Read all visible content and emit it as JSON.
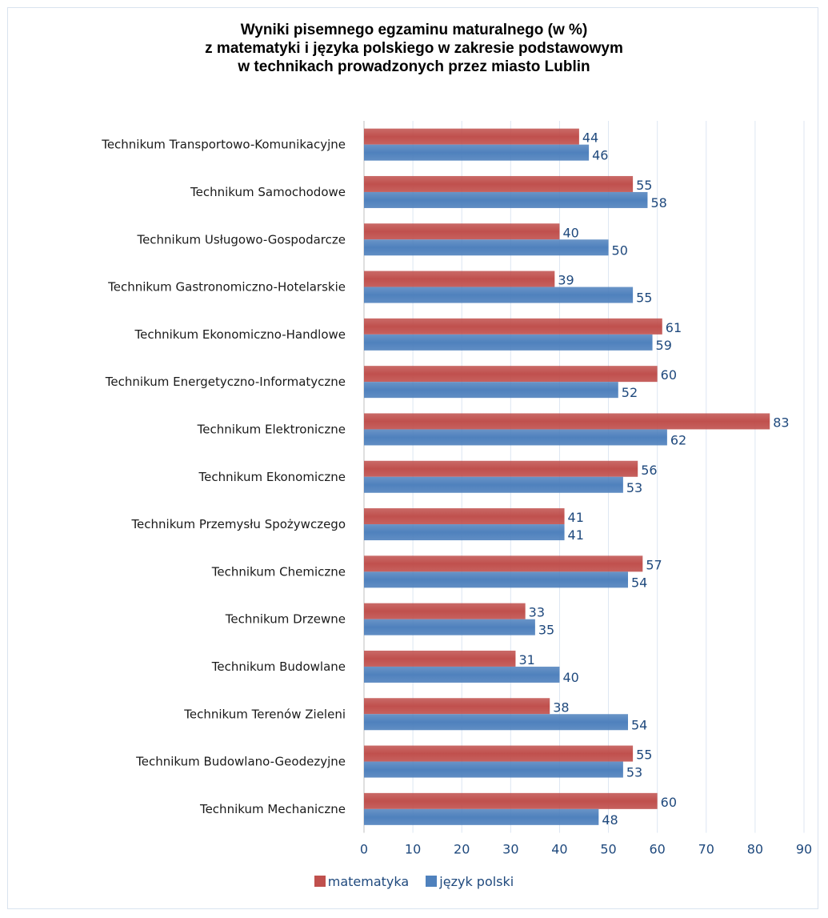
{
  "chart_data": {
    "type": "bar",
    "orientation": "horizontal",
    "title_lines": [
      "Wyniki pisemnego egzaminu maturalnego (w %)",
      "z matematyki i języka polskiego w zakresie podstawowym",
      "w technikach prowadzonych przez miasto Lublin"
    ],
    "categories": [
      "Technikum Transportowo-Komunikacyjne",
      "Technikum Samochodowe",
      "Technikum Usługowo-Gospodarcze",
      "Technikum Gastronomiczno-Hotelarskie",
      "Technikum Ekonomiczno-Handlowe",
      "Technikum Energetyczno-Informatyczne",
      "Technikum Elektroniczne",
      "Technikum Ekonomiczne",
      "Technikum Przemysłu Spożywczego",
      "Technikum Chemiczne",
      "Technikum Drzewne",
      "Technikum Budowlane",
      "Technikum Terenów Zieleni",
      "Technikum Budowlano-Geodezyjne",
      "Technikum Mechaniczne"
    ],
    "series": [
      {
        "name": "matematyka",
        "color": "#c0504d",
        "values": [
          44,
          55,
          40,
          39,
          61,
          60,
          83,
          56,
          41,
          57,
          33,
          31,
          38,
          55,
          60
        ]
      },
      {
        "name": "język polski",
        "color": "#4f81bd",
        "values": [
          46,
          58,
          50,
          55,
          59,
          52,
          62,
          53,
          41,
          54,
          35,
          40,
          54,
          53,
          48
        ]
      }
    ],
    "xlim": [
      0,
      90
    ],
    "xticks": [
      0,
      10,
      20,
      30,
      40,
      50,
      60,
      70,
      80,
      90
    ],
    "grid": true,
    "legend_position": "bottom",
    "data_labels": true
  }
}
